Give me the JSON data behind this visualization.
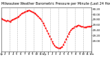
{
  "title": "Milwaukee Weather Barometric Pressure per Minute (Last 24 Hours)",
  "line_color": "#ff0000",
  "bg_color": "#ffffff",
  "plot_bg": "#ffffff",
  "grid_color": "#aaaaaa",
  "y_values": [
    29.85,
    29.82,
    29.8,
    29.78,
    29.75,
    29.77,
    29.74,
    29.72,
    29.76,
    29.8,
    29.83,
    29.84,
    29.87,
    29.9,
    29.93,
    29.97,
    30.02,
    30.05,
    30.08,
    30.1,
    30.12,
    30.14,
    30.15,
    30.13,
    30.1,
    30.08,
    30.05,
    30.02,
    29.98,
    29.93,
    29.88,
    29.82,
    29.75,
    29.67,
    29.58,
    29.48,
    29.38,
    29.28,
    29.18,
    29.08,
    28.98,
    28.9,
    28.83,
    28.78,
    28.75,
    28.73,
    28.72,
    28.74,
    28.78,
    28.85,
    28.95,
    29.05,
    29.15,
    29.25,
    29.33,
    29.4,
    29.46,
    29.5,
    29.53,
    29.55,
    29.57,
    29.58,
    29.57,
    29.55,
    29.53,
    29.52,
    29.51,
    29.52,
    29.53,
    29.54,
    29.55,
    29.56
  ],
  "ylim": [
    28.6,
    30.25
  ],
  "yticks": [
    29.0,
    29.2,
    29.4,
    29.6,
    29.8,
    30.0,
    30.2
  ],
  "num_vgrid": 10,
  "title_fontsize": 3.5,
  "tick_fontsize": 2.8,
  "line_width": 0.6,
  "marker_size": 1.2,
  "num_xticks": 24,
  "xtick_labels": [
    "1p",
    "2",
    "3",
    "4",
    "5",
    "6",
    "7",
    "8",
    "9",
    "10",
    "11",
    "12p",
    "1",
    "2",
    "3",
    "4",
    "5",
    "6",
    "7",
    "8",
    "9",
    "10",
    "11",
    "12a"
  ]
}
